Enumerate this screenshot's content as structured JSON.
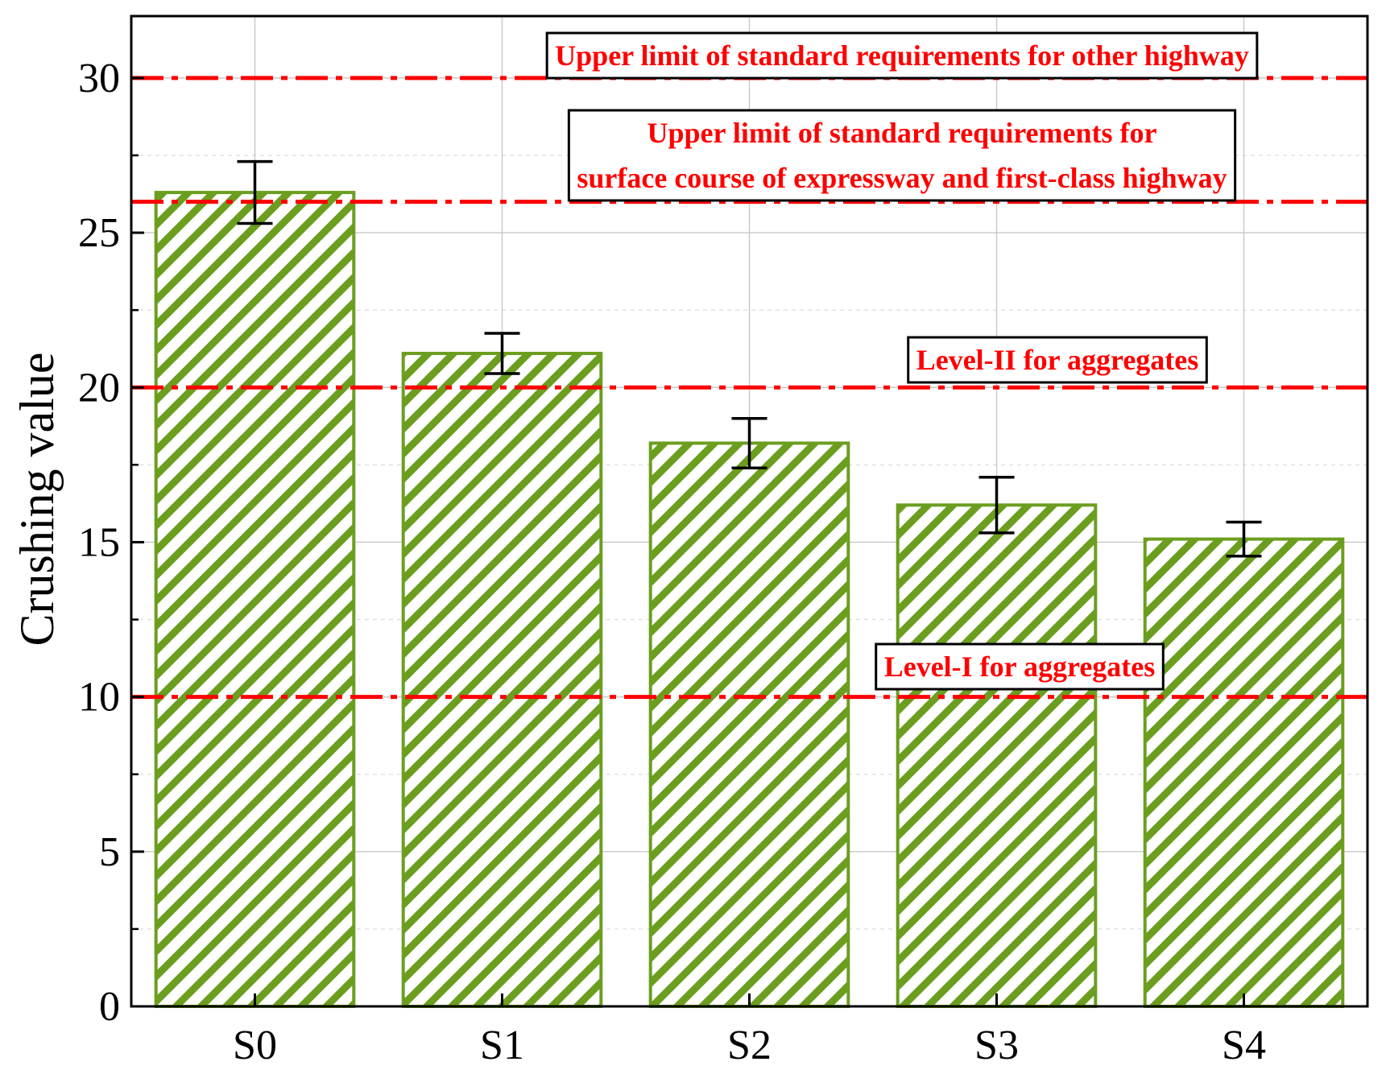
{
  "chart_data": {
    "type": "bar",
    "ylabel": "Crushing value",
    "xlabel": "",
    "categories": [
      "S0",
      "S1",
      "S2",
      "S3",
      "S4"
    ],
    "values": [
      26.3,
      21.1,
      18.2,
      16.2,
      15.1
    ],
    "errors": [
      1.0,
      0.65,
      0.8,
      0.9,
      0.55
    ],
    "ylim": [
      0,
      32
    ],
    "yticks": [
      0,
      5,
      10,
      15,
      20,
      25,
      30
    ],
    "grid": true,
    "bar_color": "#6b9e1f",
    "reference_color": "#ff0000",
    "reference_lines": [
      {
        "value": 30,
        "label_lines": [
          "Upper limit of standard requirements for other highway"
        ]
      },
      {
        "value": 26,
        "label_lines": [
          "Upper limit of standard requirements for",
          "surface course of expressway and first-class highway"
        ]
      },
      {
        "value": 20,
        "label_lines": [
          "Level-II for aggregates"
        ]
      },
      {
        "value": 10,
        "label_lines": [
          "Level-I for aggregates"
        ]
      }
    ]
  }
}
